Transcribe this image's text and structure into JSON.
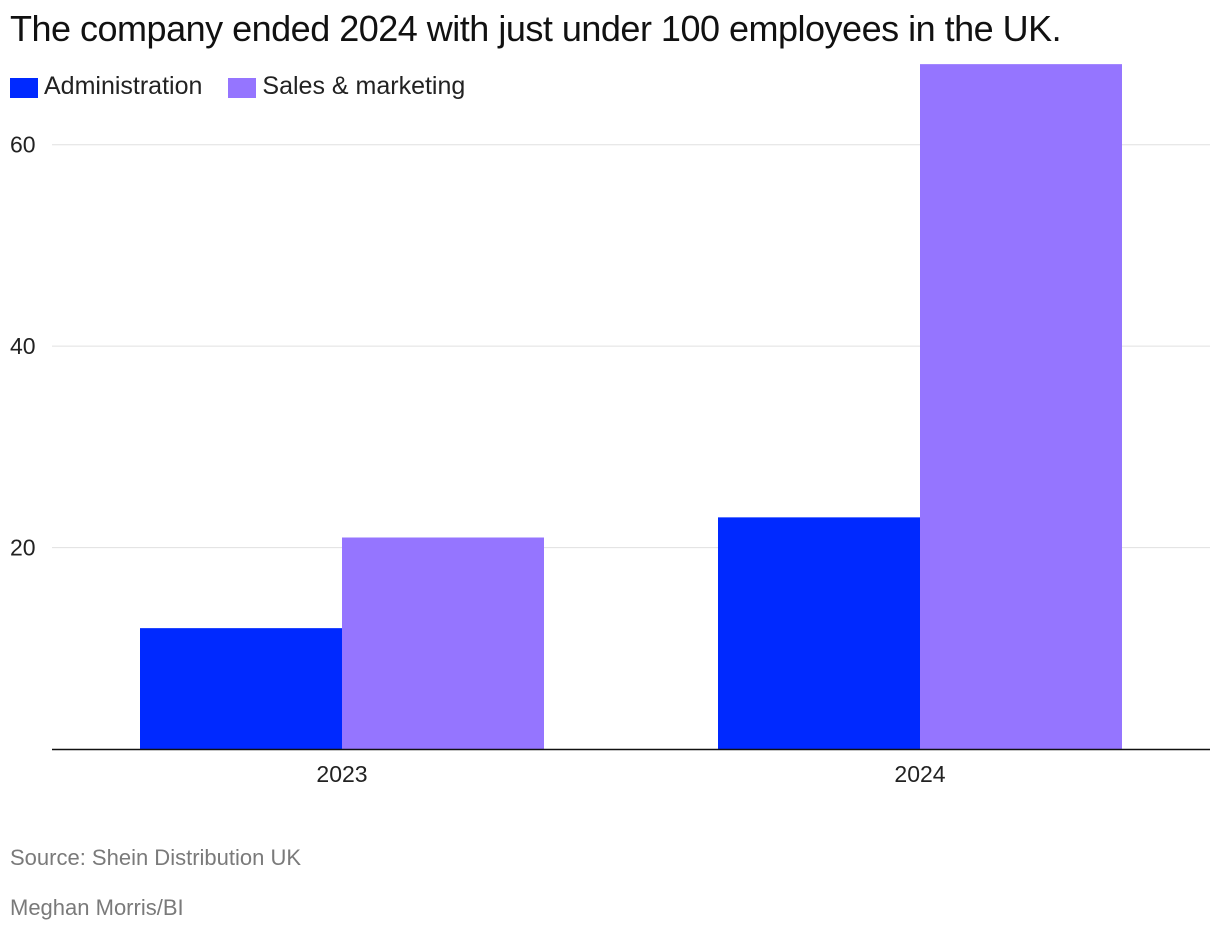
{
  "chart_data": {
    "type": "bar",
    "title": "The company ended 2024 with just under 100 employees in the UK.",
    "categories": [
      "2023",
      "2024"
    ],
    "series": [
      {
        "name": "Administration",
        "values": [
          12,
          23
        ],
        "color": "#0029ff"
      },
      {
        "name": "Sales & marketing",
        "values": [
          21,
          68
        ],
        "color": "#9575ff"
      }
    ],
    "yticks": [
      20,
      40,
      60
    ],
    "ylim": [
      0,
      70
    ],
    "xlabel": "",
    "ylabel": "",
    "grid": true,
    "legend": "top-left"
  },
  "footer": {
    "source": "Source: Shein Distribution UK",
    "credit": "Meghan Morris/BI"
  }
}
